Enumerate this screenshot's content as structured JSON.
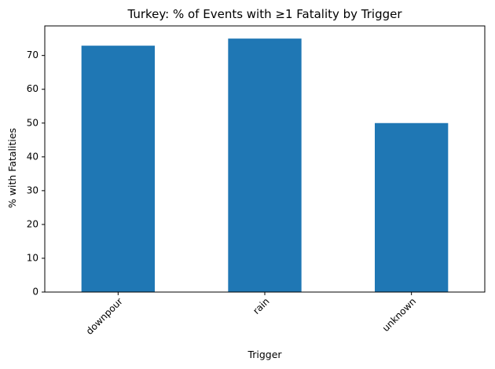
{
  "chart_data": {
    "type": "bar",
    "title": "Turkey: % of Events with ≥1 Fatality by Trigger",
    "xlabel": "Trigger",
    "ylabel": "% with Fatalities",
    "categories": [
      "downpour",
      "rain",
      "unknown"
    ],
    "values": [
      72.9,
      75.0,
      50.0
    ],
    "ylim": [
      0,
      78.75
    ],
    "yticks": [
      0,
      10,
      20,
      30,
      40,
      50,
      60,
      70
    ],
    "grid": false,
    "legend": "none",
    "bar_color": "#1f77b4"
  }
}
